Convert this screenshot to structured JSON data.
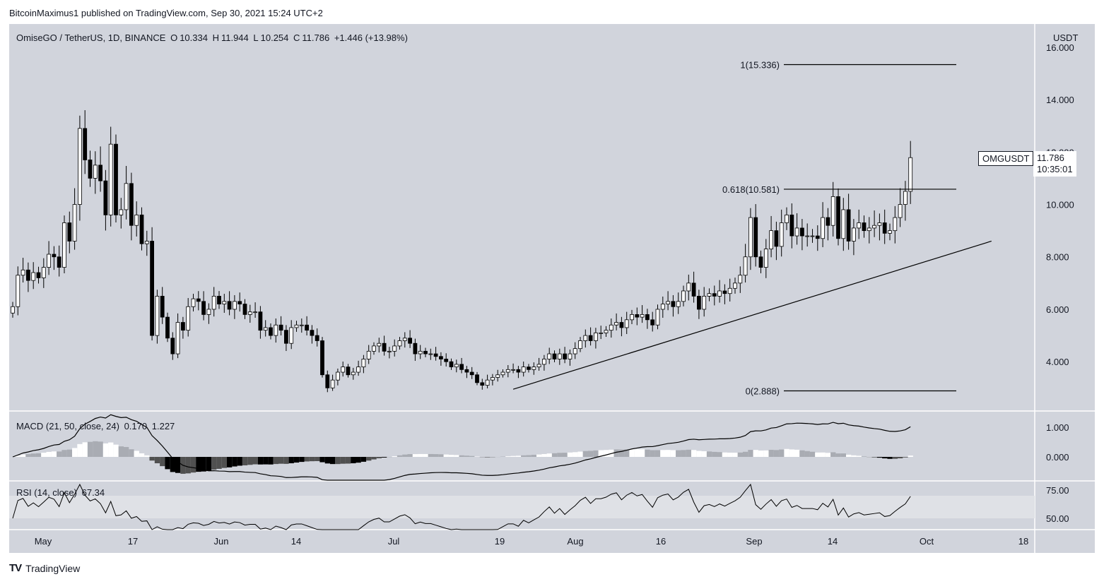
{
  "publisher_line": "BitcoinMaximus1 published on TradingView.com, Sep 30, 2021 15:24 UTC+2",
  "symbol_line": "OmiseGO / TetherUS, 1D, BINANCE",
  "ohlc": {
    "o_label": "O",
    "o": "10.334",
    "h_label": "H",
    "h": "11.944",
    "l_label": "L",
    "l": "10.254",
    "c_label": "C",
    "c": "11.786",
    "change": "+1.446 (+13.98%)"
  },
  "currency": "USDT",
  "ticker_tag": "OMGUSDT",
  "last_price": "11.786",
  "countdown": "10:35:01",
  "macd_legend": "MACD (21, 50, close, 24)",
  "macd_vals": [
    "0.170",
    "1.227"
  ],
  "rsi_legend": "RSI (14, close)",
  "rsi_val": "67.34",
  "footer_brand": "TradingView",
  "colors": {
    "panel_bg": "#d1d4dc",
    "candle_up": "#ffffff",
    "candle_down": "#000000",
    "line": "#000000",
    "rsi_band": "#dfe1e6"
  },
  "chart_data": [
    {
      "type": "candlestick",
      "title": "OmiseGO / TetherUS, 1D, BINANCE",
      "x_ticks": [
        "May",
        "17",
        "Jun",
        "14",
        "Jul",
        "19",
        "Aug",
        "16",
        "Sep",
        "14",
        "Oct",
        "18"
      ],
      "y_ticks": [
        "4.000",
        "6.000",
        "8.000",
        "10.000",
        "12.000",
        "14.000",
        "16.000"
      ],
      "ylim": [
        2.2,
        16.4
      ],
      "grid": false,
      "closes": [
        6.1,
        7.3,
        7.5,
        7.1,
        7.4,
        7.2,
        7.6,
        8.1,
        8.0,
        7.6,
        9.3,
        8.6,
        10.0,
        12.9,
        11.7,
        11.0,
        11.5,
        10.9,
        9.6,
        12.3,
        9.6,
        9.8,
        10.8,
        9.2,
        9.6,
        8.5,
        8.6,
        5.0,
        6.5,
        5.7,
        4.9,
        4.3,
        5.5,
        5.2,
        6.1,
        6.4,
        6.3,
        5.8,
        6.0,
        6.5,
        6.2,
        6.3,
        6.0,
        6.3,
        6.2,
        5.8,
        5.9,
        5.9,
        5.2,
        5.3,
        5.0,
        5.4,
        5.2,
        4.7,
        5.3,
        5.4,
        5.4,
        5.2,
        5.0,
        4.8,
        3.5,
        3.0,
        3.3,
        3.6,
        3.8,
        3.5,
        3.6,
        3.8,
        4.1,
        4.4,
        4.6,
        4.7,
        4.4,
        4.4,
        4.6,
        4.8,
        4.9,
        4.7,
        4.3,
        4.4,
        4.3,
        4.3,
        4.2,
        4.1,
        4.0,
        3.8,
        3.9,
        3.7,
        3.6,
        3.5,
        3.2,
        3.1,
        3.3,
        3.4,
        3.5,
        3.6,
        3.7,
        3.7,
        3.6,
        3.8,
        3.7,
        3.8,
        3.9,
        4.1,
        4.3,
        4.1,
        4.3,
        4.1,
        4.3,
        4.5,
        4.8,
        5.0,
        4.8,
        5.1,
        5.1,
        5.2,
        5.4,
        5.5,
        5.3,
        5.6,
        5.8,
        5.7,
        5.8,
        5.6,
        5.4,
        6.0,
        6.2,
        6.3,
        6.1,
        6.3,
        6.7,
        7.0,
        6.5,
        6.0,
        6.5,
        6.6,
        6.5,
        6.7,
        6.6,
        6.8,
        7.0,
        7.3,
        8.0,
        9.5,
        8.0,
        7.6,
        8.3,
        9.0,
        8.4,
        9.3,
        9.6,
        8.8,
        9.1,
        8.8,
        8.8,
        8.8,
        8.7,
        9.5,
        9.2,
        10.3,
        8.7,
        9.8,
        8.6,
        9.1,
        9.3,
        9.0,
        9.1,
        9.2,
        9.3,
        8.9,
        9.0,
        9.5,
        10.0,
        10.5,
        11.786
      ],
      "fib_levels": [
        {
          "label": "1(15.336)",
          "value": 15.336
        },
        {
          "label": "0.618(10.581)",
          "value": 10.581
        },
        {
          "label": "0(2.888)",
          "value": 2.888
        }
      ],
      "trendline": {
        "from_index": 97,
        "from_value": 2.95,
        "to_index": 176,
        "to_value": 8.6
      }
    },
    {
      "type": "macd",
      "title": "MACD (21, 50, close, 24)",
      "y_ticks": [
        "1.000",
        "0.000"
      ],
      "values": {
        "histogram": 0.17,
        "macd": 1.227
      }
    },
    {
      "type": "line",
      "title": "RSI (14, close)",
      "y_ticks": [
        "75.00",
        "50.00"
      ],
      "band": [
        50,
        70
      ],
      "last": 67.34
    }
  ]
}
